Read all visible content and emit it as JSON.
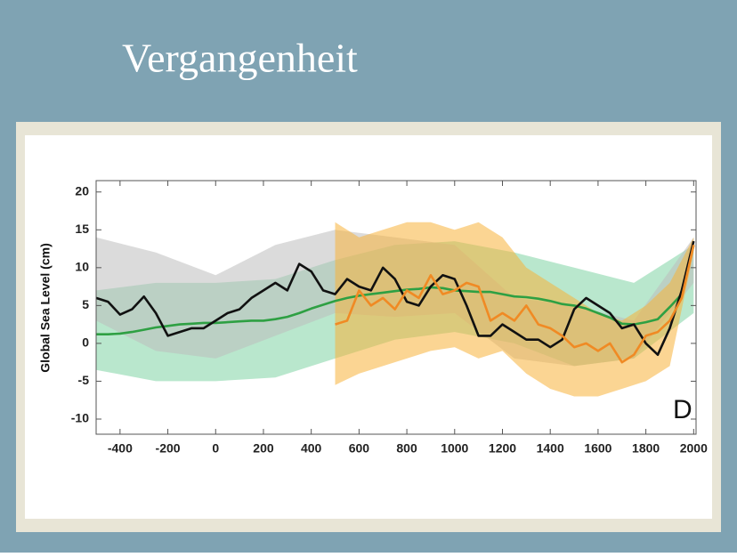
{
  "chart_data": {
    "type": "line",
    "title": "Vergangenheit",
    "ylabel": "Global Sea Level (cm)",
    "annotation": "D",
    "xlim": [
      -500,
      2010
    ],
    "ylim": [
      -12,
      21.5
    ],
    "xticks": [
      -400,
      -200,
      0,
      200,
      400,
      600,
      800,
      1000,
      1200,
      1400,
      1600,
      1800,
      2000
    ],
    "yticks": [
      -10,
      -5,
      0,
      5,
      10,
      15,
      20
    ],
    "x": [
      -500,
      -450,
      -400,
      -350,
      -300,
      -250,
      -200,
      -150,
      -100,
      -50,
      0,
      50,
      100,
      150,
      200,
      250,
      300,
      350,
      400,
      450,
      500,
      550,
      600,
      650,
      700,
      750,
      800,
      850,
      900,
      950,
      1000,
      1050,
      1100,
      1150,
      1200,
      1250,
      1300,
      1350,
      1400,
      1450,
      1500,
      1550,
      1600,
      1650,
      1700,
      1750,
      1800,
      1850,
      1900,
      1950,
      2000
    ],
    "series": [
      {
        "color": "#2ea043",
        "values": [
          1.2,
          1.2,
          1.3,
          1.5,
          1.8,
          2.1,
          2.3,
          2.5,
          2.6,
          2.7,
          2.7,
          2.8,
          2.9,
          3.0,
          3.0,
          3.2,
          3.5,
          4.0,
          4.6,
          5.1,
          5.6,
          6.0,
          6.3,
          6.5,
          6.7,
          6.9,
          7.1,
          7.2,
          7.4,
          7.3,
          7.0,
          6.9,
          6.8,
          6.8,
          6.5,
          6.2,
          6.1,
          5.9,
          5.6,
          5.2,
          5.0,
          4.6,
          4.0,
          3.4,
          2.6,
          2.5,
          2.8,
          3.2,
          4.8,
          6.5,
          13
        ]
      },
      {
        "color": "#111111",
        "values": [
          6,
          5.5,
          3.8,
          4.5,
          6.2,
          4,
          1,
          1.5,
          2,
          2,
          3,
          4,
          4.5,
          6,
          7,
          8,
          7,
          10.5,
          9.5,
          7,
          6.5,
          8.5,
          7.5,
          7,
          10,
          8.5,
          5.5,
          5,
          7.5,
          9,
          8.5,
          5,
          1,
          1,
          2.5,
          1.5,
          0.5,
          0.5,
          -0.5,
          0.5,
          4.5,
          6,
          5,
          4,
          2,
          2.5,
          0,
          -1.5,
          2,
          7,
          13.5
        ]
      },
      {
        "color": "#f08a24",
        "values": [
          null,
          null,
          null,
          null,
          null,
          null,
          null,
          null,
          null,
          null,
          null,
          null,
          null,
          null,
          null,
          null,
          null,
          null,
          null,
          null,
          2.5,
          3,
          7,
          5,
          6,
          4.5,
          7,
          6,
          9,
          6.5,
          7,
          8,
          7.5,
          3,
          4,
          3,
          5,
          2.5,
          2,
          1,
          -0.5,
          0,
          -1,
          0,
          -2.5,
          -1.5,
          1,
          1.5,
          3,
          6,
          13
        ]
      }
    ],
    "bands": [
      {
        "color": "#7fd3a4",
        "x": [
          -500,
          -250,
          0,
          250,
          500,
          750,
          1000,
          1250,
          1500,
          1750,
          2000
        ],
        "lower": [
          -3.5,
          -5,
          -5,
          -4.5,
          -2,
          0.5,
          1.5,
          0,
          -3,
          -2,
          4
        ],
        "upper": [
          7,
          8,
          8,
          8.5,
          11,
          13,
          13.5,
          12,
          10,
          8,
          13
        ]
      },
      {
        "color": "#bdbdbd",
        "x": [
          -500,
          -250,
          0,
          250,
          500,
          750,
          1000,
          1250,
          1500,
          1750,
          2000
        ],
        "lower": [
          3,
          -1,
          -2,
          1,
          4,
          3.5,
          4,
          -2,
          -3,
          -2,
          8
        ],
        "upper": [
          14,
          12,
          9,
          13,
          15,
          14,
          13,
          6,
          5,
          3,
          14
        ]
      },
      {
        "color": "#f7b23b",
        "x": [
          500,
          600,
          700,
          800,
          900,
          1000,
          1100,
          1200,
          1300,
          1400,
          1500,
          1600,
          1700,
          1800,
          1900,
          2000
        ],
        "lower": [
          -5.5,
          -4,
          -3,
          -2,
          -1,
          -0.5,
          -2,
          -1,
          -4,
          -6,
          -7,
          -7,
          -6,
          -5,
          -3,
          12
        ],
        "upper": [
          16,
          14,
          15,
          16,
          16,
          15,
          16,
          14,
          10,
          8,
          6,
          4,
          3,
          5,
          8,
          14
        ]
      }
    ]
  }
}
